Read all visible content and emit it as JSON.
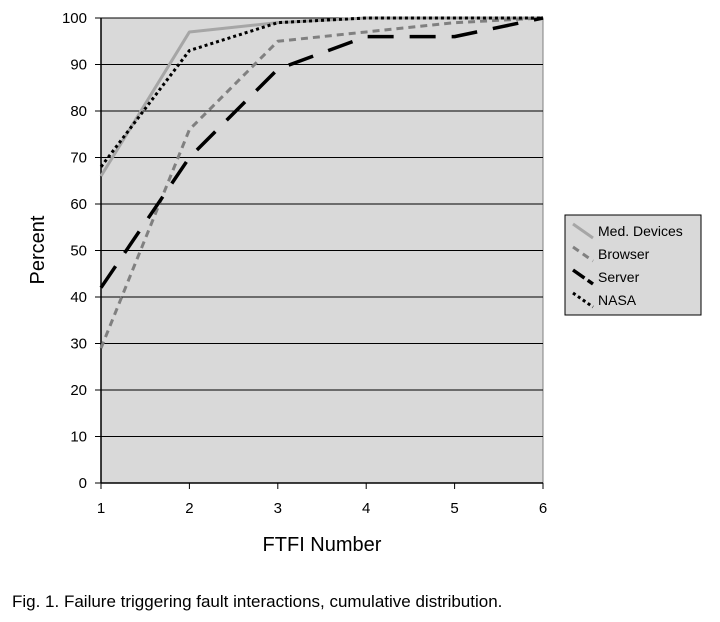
{
  "chart_data": {
    "type": "line",
    "x": [
      1,
      2,
      3,
      4,
      5,
      6
    ],
    "xlabel": "FTFI Number",
    "ylabel": "Percent",
    "xlim": [
      1,
      6
    ],
    "ylim": [
      0,
      100
    ],
    "yticks": [
      0,
      10,
      20,
      30,
      40,
      50,
      60,
      70,
      80,
      90,
      100
    ],
    "xticks": [
      1,
      2,
      3,
      4,
      5,
      6
    ],
    "grid": "horizontal",
    "plot_background": "#d9d9d9",
    "legend_position": "right",
    "series": [
      {
        "name": "Med. Devices",
        "values": [
          66,
          97,
          99,
          100,
          100,
          100
        ],
        "color": "#a6a6a6",
        "style": "solid"
      },
      {
        "name": "Browser",
        "values": [
          29,
          76,
          95,
          97,
          99,
          100
        ],
        "color": "#808080",
        "style": "dashed"
      },
      {
        "name": "Server",
        "values": [
          42,
          70,
          89,
          96,
          96,
          100
        ],
        "color": "#000000",
        "style": "longdash"
      },
      {
        "name": "NASA",
        "values": [
          68,
          93,
          99,
          100,
          100,
          100
        ],
        "color": "#000000",
        "style": "dotted"
      }
    ]
  },
  "caption": "Fig. 1. Failure triggering fault interactions, cumulative distribution."
}
